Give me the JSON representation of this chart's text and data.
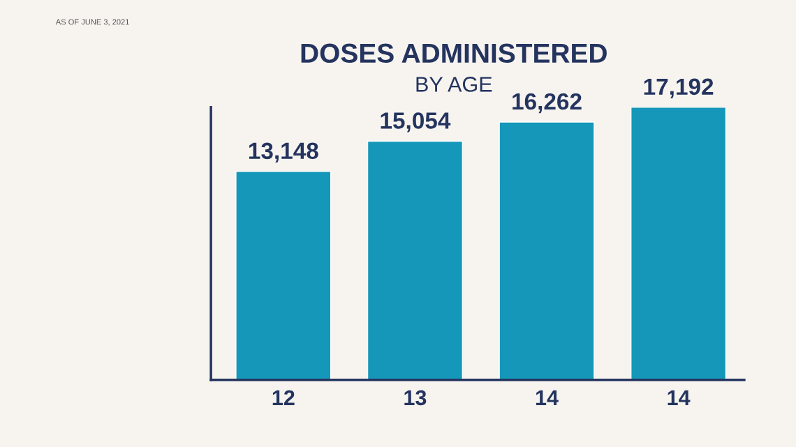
{
  "chart_data": {
    "type": "bar",
    "title": "DOSES ADMINISTERED",
    "subtitle": "BY AGE",
    "annotations": [
      "AS OF JUNE 3, 2021"
    ],
    "categories": [
      "12",
      "13",
      "14",
      "14"
    ],
    "values": [
      13148,
      15054,
      16262,
      17192
    ],
    "color": "#1497b8",
    "value_labels": [
      "13,148",
      "15,054",
      "16,262",
      "17,192"
    ],
    "grid": false,
    "legend": false
  }
}
